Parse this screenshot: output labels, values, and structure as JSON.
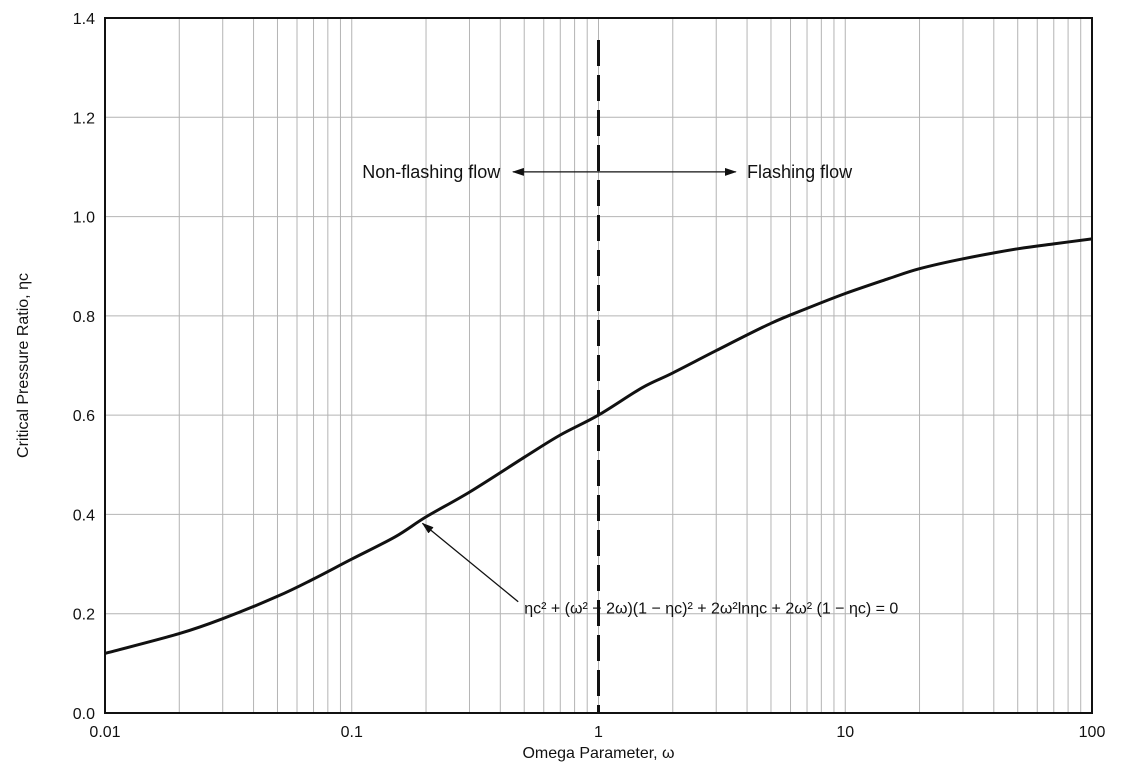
{
  "chart_data": {
    "type": "line",
    "xscale": "log",
    "xlim": [
      0.01,
      100
    ],
    "ylim": [
      0.0,
      1.4
    ],
    "xlabel": "Omega Parameter, ω",
    "ylabel": "Critical Pressure Ratio, ηc",
    "x_ticks": [
      {
        "value": 0.01,
        "label": "0.01"
      },
      {
        "value": 0.1,
        "label": "0.1"
      },
      {
        "value": 1,
        "label": "1"
      },
      {
        "value": 10,
        "label": "10"
      },
      {
        "value": 100,
        "label": "100"
      }
    ],
    "y_ticks": [
      {
        "value": 0.0,
        "label": "0.0"
      },
      {
        "value": 0.2,
        "label": "0.2"
      },
      {
        "value": 0.4,
        "label": "0.4"
      },
      {
        "value": 0.6,
        "label": "0.6"
      },
      {
        "value": 0.8,
        "label": "0.8"
      },
      {
        "value": 1.0,
        "label": "1.0"
      },
      {
        "value": 1.2,
        "label": "1.2"
      },
      {
        "value": 1.4,
        "label": "1.4"
      }
    ],
    "grid": {
      "vertical_minor": true,
      "horizontal": true
    },
    "series": [
      {
        "x": [
          0.01,
          0.02,
          0.03,
          0.05,
          0.07,
          0.1,
          0.15,
          0.2,
          0.3,
          0.5,
          0.7,
          1,
          1.5,
          2,
          3,
          5,
          7,
          10,
          15,
          20,
          30,
          50,
          70,
          100
        ],
        "y": [
          0.12,
          0.16,
          0.19,
          0.235,
          0.27,
          0.31,
          0.355,
          0.395,
          0.445,
          0.515,
          0.56,
          0.6,
          0.655,
          0.685,
          0.73,
          0.785,
          0.815,
          0.845,
          0.875,
          0.895,
          0.915,
          0.935,
          0.945,
          0.955
        ],
        "color": "#111111"
      }
    ],
    "reference_line": {
      "x": 1,
      "style": "dashed",
      "color": "#111111"
    },
    "annotations": {
      "left_region": {
        "text": "Non-flashing flow",
        "x": 0.4,
        "y": 1.09,
        "arrow_to_x": 0.45
      },
      "right_region": {
        "text": "Flashing flow",
        "x": 4.0,
        "y": 1.09,
        "arrow_to_x": 3.6
      },
      "arrow_origin_x": 1.0,
      "equation": {
        "x": 0.5,
        "y": 0.2,
        "arrow_to": {
          "x": 0.19,
          "y": 0.39
        },
        "text": "ηc² + (ω² − 2ω)(1 − ηc)² + 2ω²lnηc + 2ω² (1 − ηc) = 0"
      }
    }
  }
}
